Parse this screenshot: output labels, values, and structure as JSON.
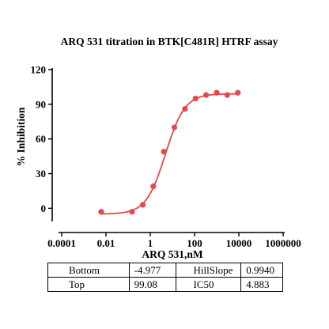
{
  "chart_data": {
    "type": "scatter",
    "title": "ARQ 531 titration in  BTK[C481R] HTRF assay",
    "xlabel": "ARQ 531,nM",
    "ylabel": "% Inhibition",
    "xscale": "log",
    "xlim": [
      0.0001,
      1000000
    ],
    "ylim": [
      -10,
      120
    ],
    "x_tick_labels": [
      "0.0001",
      "0.01",
      "1",
      "100",
      "10000",
      "1000000"
    ],
    "y_tick_labels": [
      "0",
      "30",
      "60",
      "90",
      "120"
    ],
    "color": "#e34a4a",
    "series": [
      {
        "points": [
          {
            "x": 0.0061,
            "y": -3
          },
          {
            "x": 0.15,
            "y": -3
          },
          {
            "x": 0.46,
            "y": 3
          },
          {
            "x": 1.37,
            "y": 19
          },
          {
            "x": 4.1,
            "y": 49
          },
          {
            "x": 12.3,
            "y": 70
          },
          {
            "x": 37,
            "y": 86
          },
          {
            "x": 111,
            "y": 95
          },
          {
            "x": 333,
            "y": 98
          },
          {
            "x": 1000,
            "y": 100
          },
          {
            "x": 3000,
            "y": 98
          },
          {
            "x": 9000,
            "y": 100
          }
        ],
        "fit": {
          "model": "4PL",
          "bottom": -4.977,
          "top": 99.08,
          "hillslope": 0.994,
          "ic50": 4.883
        }
      }
    ]
  },
  "table": {
    "rows": [
      [
        "Bottom",
        "-4.977",
        "HillSlope",
        "0.9940"
      ],
      [
        "Top",
        "99.08",
        "IC50",
        "4.883"
      ]
    ]
  }
}
